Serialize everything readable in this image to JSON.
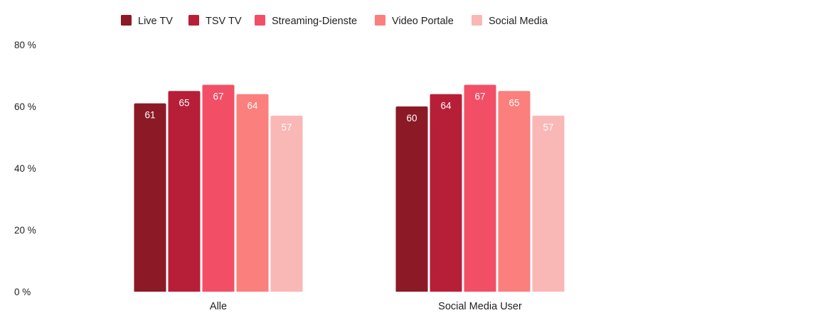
{
  "chart_data": {
    "type": "bar",
    "title": "",
    "xlabel": "",
    "ylabel": "",
    "categories": [
      "Alle",
      "Social Media User"
    ],
    "series": [
      {
        "name": "Live TV",
        "color": "#8b1a26",
        "label_color": "#ffffff",
        "values": [
          61,
          60
        ]
      },
      {
        "name": "TSV TV",
        "color": "#b71f38",
        "label_color": "#ffffff",
        "values": [
          65,
          64
        ]
      },
      {
        "name": "Streaming-Dienste",
        "color": "#f24f67",
        "label_color": "#ffffff",
        "values": [
          67,
          67
        ]
      },
      {
        "name": "Video Portale",
        "color": "#fb7f7d",
        "label_color": "#ffffff",
        "values": [
          64,
          65
        ]
      },
      {
        "name": "Social Media",
        "color": "#f9b7b6",
        "label_color": "#ffffff",
        "values": [
          57,
          57
        ]
      }
    ],
    "ylim": [
      0,
      80
    ],
    "yticks": [
      0,
      20,
      40,
      60,
      80
    ],
    "ytick_labels": [
      "0 %",
      "20 %",
      "40 %",
      "60 %",
      "80 %"
    ],
    "grid": false,
    "legend_position": "top"
  }
}
